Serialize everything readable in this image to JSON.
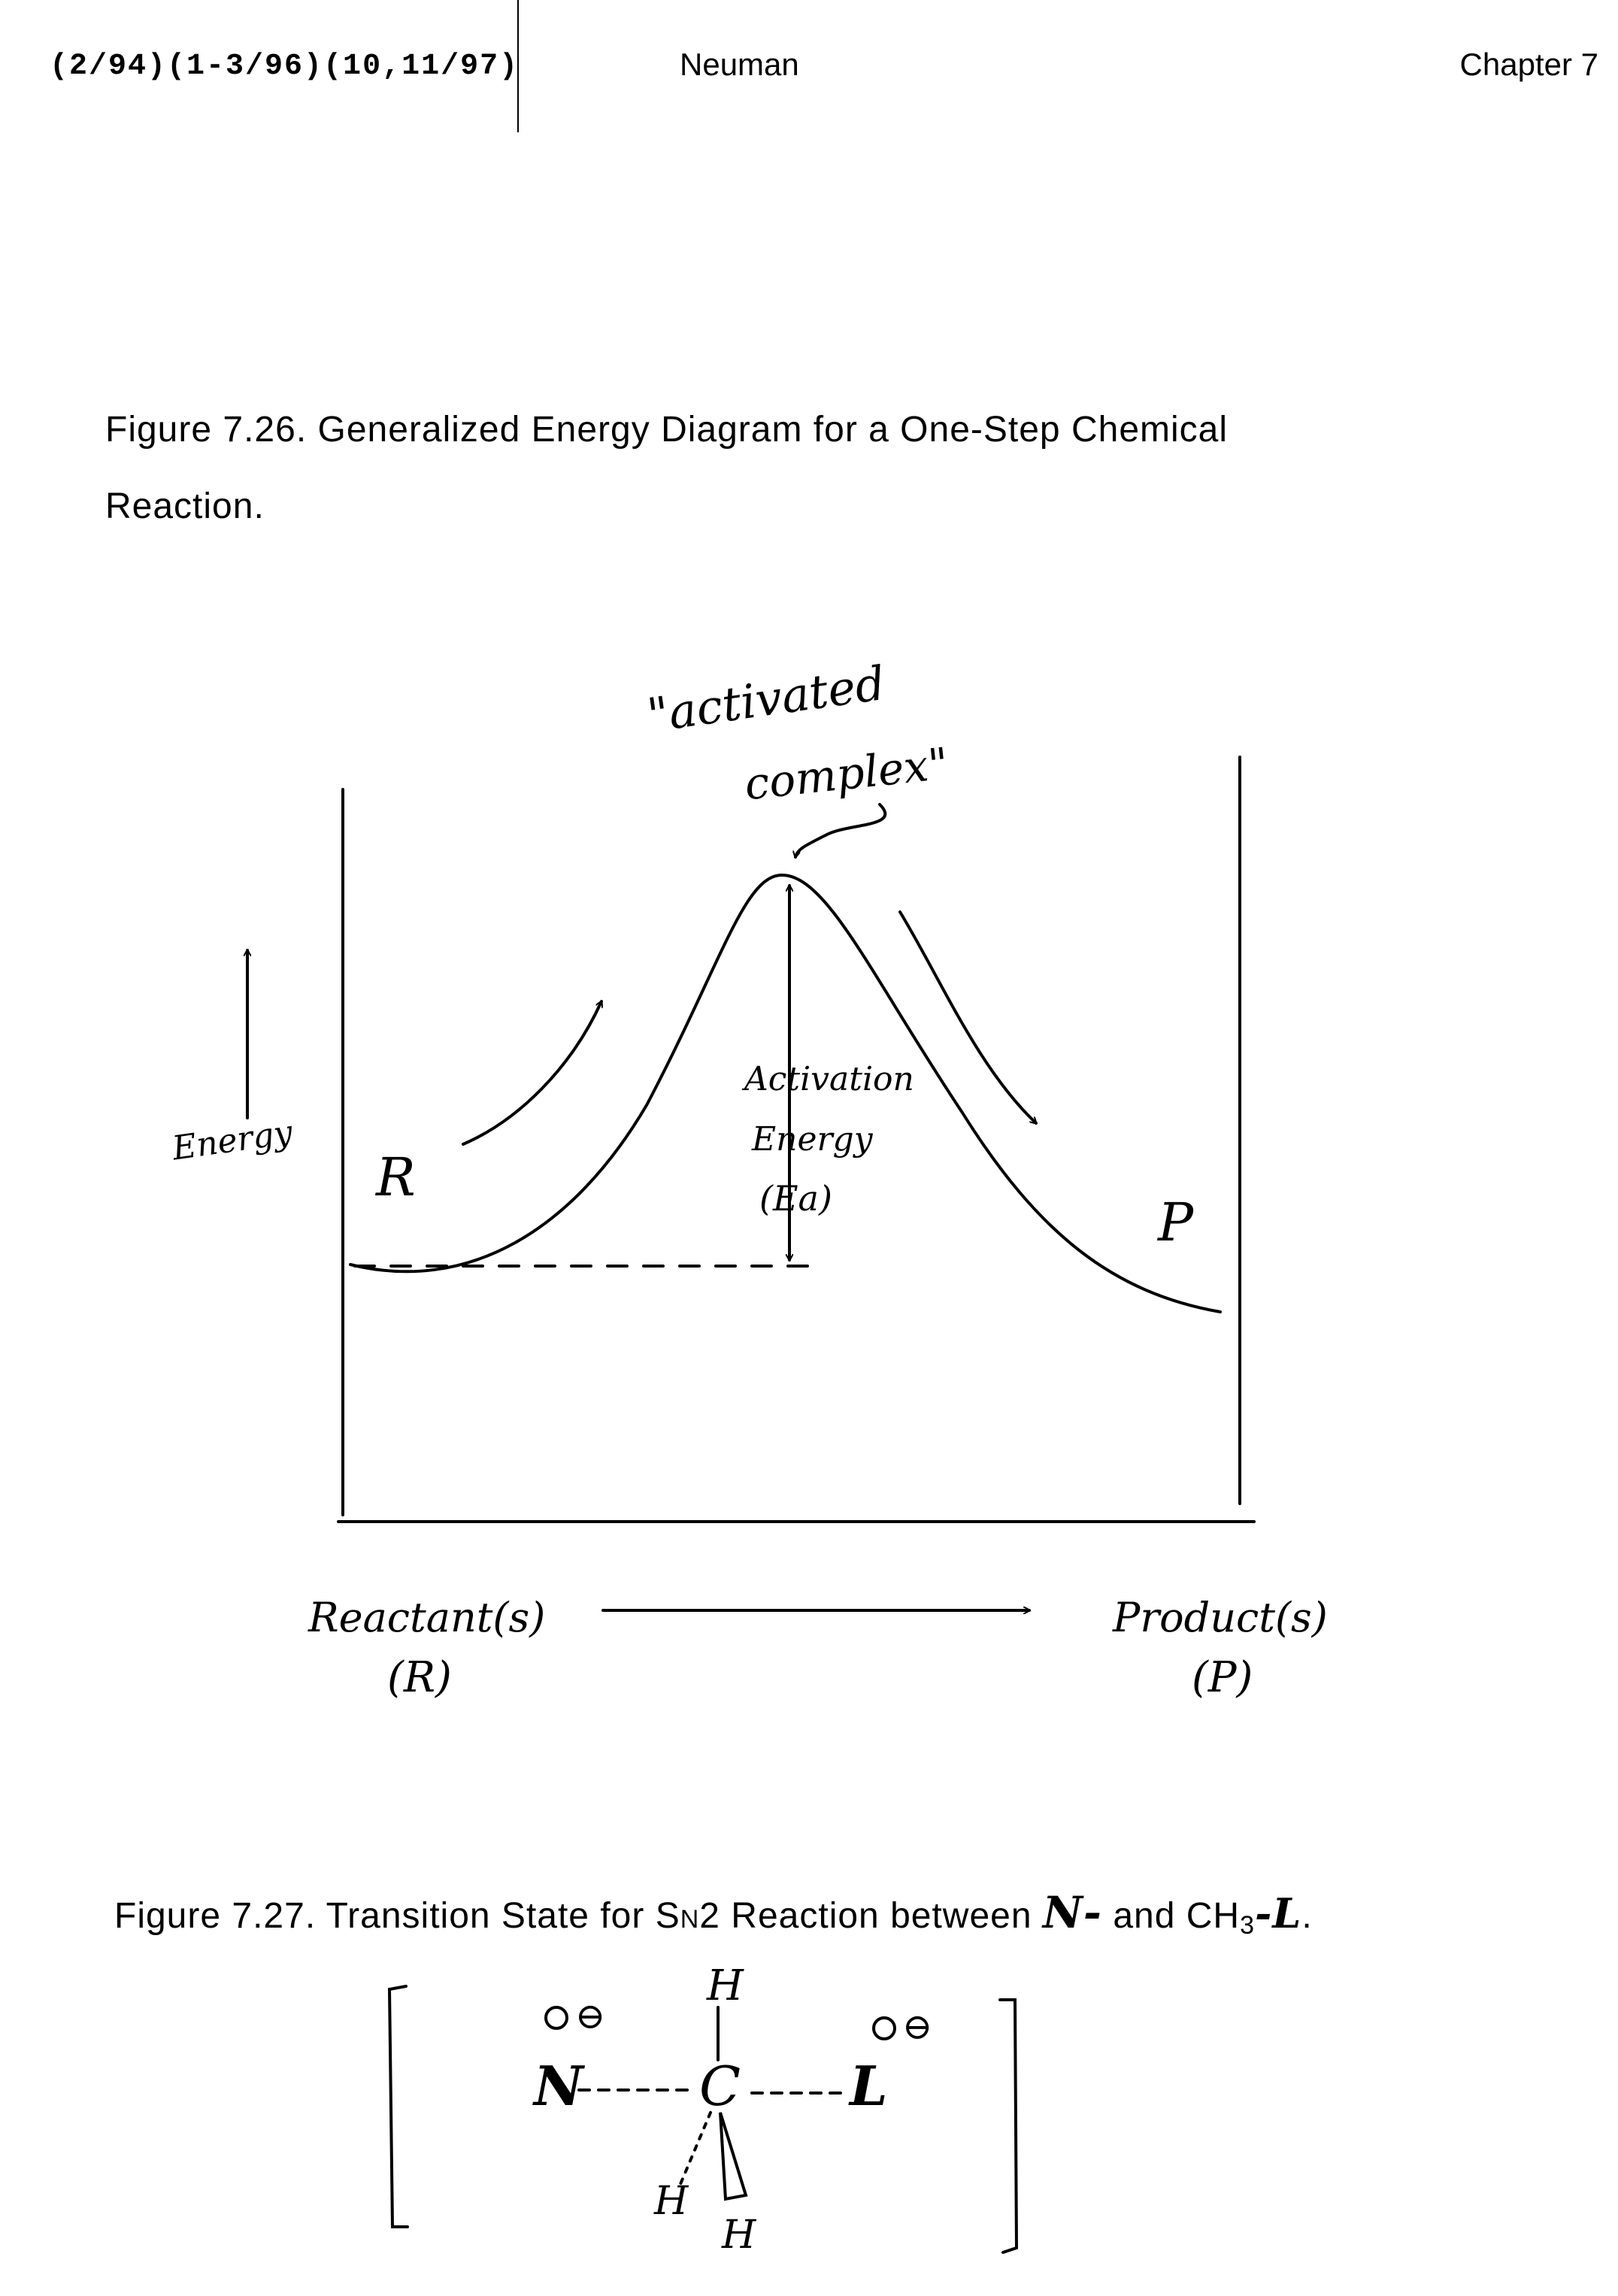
{
  "header": {
    "revision_dates": "(2/94)(1-3/96)(10,11/97)",
    "author": "Neuman",
    "chapter": "Chapter 7"
  },
  "figure_726": {
    "caption_line1": "Figure 7.26.  Generalized Energy Diagram for a One-Step Chemical",
    "caption_line2": "Reaction.",
    "labels": {
      "activated_complex_1": "\"activated",
      "activated_complex_2": "complex\"",
      "activation_1": "Activation",
      "activation_2": "Energy",
      "activation_3": "(Ea)",
      "energy": "Energy",
      "reactant_point": "R",
      "product_point": "P",
      "reactants": "Reactant(s)",
      "reactants_abbr": "(R)",
      "products": "Product(s)",
      "products_abbr": "(P)"
    }
  },
  "figure_727": {
    "caption_prefix": "Figure 7.27.  Transition State for S",
    "caption_sub": "N",
    "caption_mid": "2 Reaction between ",
    "nucleophile": "N-",
    "caption_and": " and CH",
    "caption_sub3": "3",
    "leaving": "-L",
    "caption_end": ".",
    "atoms": {
      "nucleophile": "N",
      "carbon": "C",
      "leaving_group": "L",
      "h_top": "H",
      "h_left": "H",
      "h_bottom": "H",
      "charge": "⊖"
    }
  }
}
